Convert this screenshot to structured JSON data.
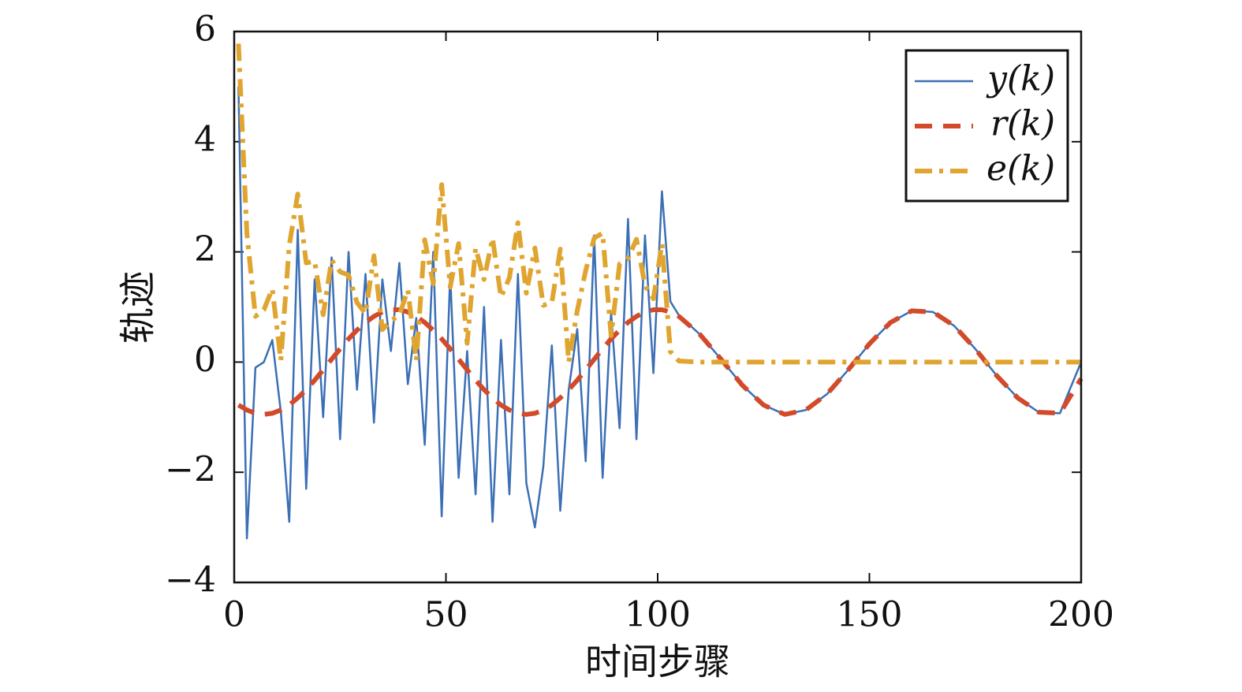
{
  "chart_data": {
    "type": "line",
    "xlabel": "时间步骤",
    "ylabel": "轨迹",
    "x": [
      1,
      3,
      5,
      7,
      9,
      11,
      13,
      15,
      17,
      19,
      21,
      23,
      25,
      27,
      29,
      31,
      33,
      35,
      37,
      39,
      41,
      43,
      45,
      47,
      49,
      51,
      53,
      55,
      57,
      59,
      61,
      63,
      65,
      67,
      69,
      71,
      73,
      75,
      77,
      79,
      81,
      83,
      85,
      87,
      89,
      91,
      93,
      95,
      97,
      99,
      101,
      103,
      105,
      110,
      115,
      120,
      125,
      130,
      135,
      140,
      145,
      150,
      155,
      160,
      165,
      170,
      175,
      180,
      185,
      190,
      195,
      200
    ],
    "series": [
      {
        "name": "y(k)",
        "color": "#3b6fb6",
        "dash": "solid",
        "values": [
          5.0,
          -3.2,
          -0.1,
          0.0,
          0.4,
          -0.9,
          -2.9,
          2.4,
          -2.3,
          1.5,
          -1.0,
          1.9,
          -1.4,
          2.0,
          -0.5,
          1.6,
          -1.1,
          1.5,
          0.2,
          1.8,
          -0.4,
          0.8,
          -1.5,
          2.0,
          -2.8,
          1.6,
          -2.1,
          0.2,
          -2.4,
          1.0,
          -2.9,
          0.4,
          -2.4,
          1.6,
          -2.2,
          -3.0,
          -1.9,
          0.3,
          -2.7,
          -0.5,
          0.6,
          -1.8,
          2.3,
          -2.1,
          0.9,
          -1.2,
          2.6,
          -1.4,
          2.3,
          -0.2,
          3.1,
          1.1,
          0.85,
          0.5,
          0.05,
          -0.42,
          -0.78,
          -0.95,
          -0.87,
          -0.58,
          -0.14,
          0.33,
          0.72,
          0.93,
          0.91,
          0.66,
          0.24,
          -0.24,
          -0.65,
          -0.91,
          -0.93,
          0.0
        ]
      },
      {
        "name": "r(k)",
        "color": "#d24a2a",
        "dash": "dashed",
        "values": [
          -0.78,
          -0.87,
          -0.93,
          -0.95,
          -0.93,
          -0.87,
          -0.78,
          -0.65,
          -0.5,
          -0.33,
          -0.14,
          0.05,
          0.24,
          0.42,
          0.58,
          0.72,
          0.83,
          0.91,
          0.95,
          0.95,
          0.91,
          0.83,
          0.72,
          0.58,
          0.42,
          0.24,
          0.05,
          -0.14,
          -0.33,
          -0.5,
          -0.65,
          -0.78,
          -0.87,
          -0.93,
          -0.95,
          -0.93,
          -0.87,
          -0.78,
          -0.65,
          -0.5,
          -0.33,
          -0.14,
          0.05,
          0.24,
          0.42,
          0.58,
          0.72,
          0.83,
          0.91,
          0.95,
          0.95,
          0.91,
          0.83,
          0.5,
          0.05,
          -0.42,
          -0.78,
          -0.95,
          -0.87,
          -0.58,
          -0.14,
          0.33,
          0.72,
          0.93,
          0.91,
          0.66,
          0.24,
          -0.24,
          -0.65,
          -0.91,
          -0.93,
          -0.3
        ]
      },
      {
        "name": "e(k)",
        "color": "#e0a530",
        "dash": "dashdot",
        "values": [
          5.78,
          2.33,
          0.83,
          0.95,
          1.33,
          0.03,
          2.12,
          3.05,
          1.8,
          1.83,
          0.86,
          1.85,
          1.64,
          1.58,
          1.08,
          0.88,
          1.93,
          0.59,
          0.75,
          0.85,
          1.31,
          0.03,
          2.22,
          1.42,
          3.22,
          1.36,
          2.15,
          0.34,
          2.07,
          1.5,
          2.25,
          1.18,
          1.53,
          2.53,
          1.25,
          2.07,
          1.03,
          1.08,
          2.05,
          0.0,
          0.93,
          1.66,
          2.25,
          2.34,
          0.48,
          1.78,
          1.88,
          2.23,
          1.39,
          1.15,
          2.15,
          0.19,
          0.02,
          0,
          0,
          0,
          0,
          0,
          0,
          0,
          0,
          0,
          0,
          0,
          0,
          0,
          0,
          0,
          0,
          0,
          0,
          0
        ]
      }
    ],
    "xlim": [
      0,
      200
    ],
    "xticks": [
      0,
      50,
      100,
      150,
      200
    ],
    "ylim": [
      -4,
      6
    ],
    "yticks": [
      {
        "value": -4,
        "label": "−4"
      },
      {
        "value": -2,
        "label": "−2"
      },
      0,
      2,
      4,
      6
    ],
    "legend": "upper right",
    "grid": false
  }
}
